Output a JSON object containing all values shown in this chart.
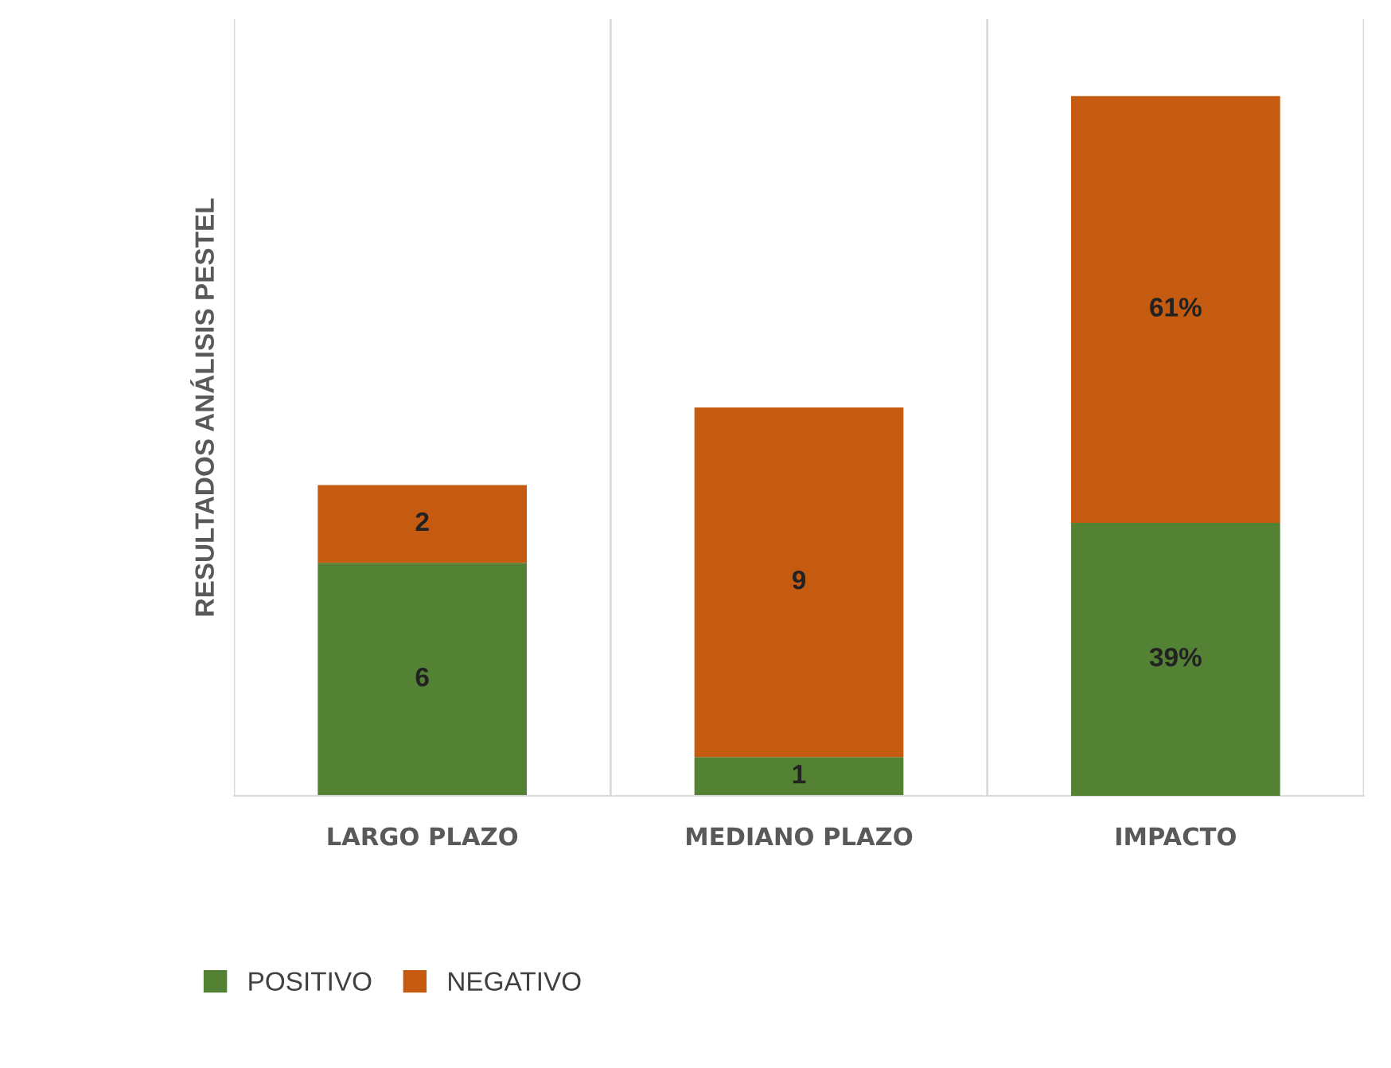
{
  "chart_data": {
    "type": "bar",
    "stacked": true,
    "ylabel": "RESULTADOS ANÁLISIS PESTEL",
    "categories": [
      "LARGO PLAZO",
      "MEDIANO PLAZO",
      "IMPACTO"
    ],
    "series": [
      {
        "name": "POSITIVO",
        "color": "#548235",
        "values": [
          6,
          1,
          null
        ],
        "value_labels": [
          "6",
          "1",
          null
        ]
      },
      {
        "name": "NEGATIVO",
        "color": "#c55a11",
        "values": [
          2,
          9,
          null
        ],
        "value_labels": [
          "2",
          "9",
          null
        ]
      },
      {
        "color": "#548235",
        "values": [
          null,
          null,
          39
        ],
        "value_labels": [
          null,
          null,
          "39%"
        ],
        "axis": "y2"
      },
      {
        "color": "#c55a11",
        "values": [
          null,
          null,
          61
        ],
        "value_labels": [
          null,
          null,
          "61%"
        ],
        "axis": "y2"
      }
    ],
    "ylim": [
      0,
      20
    ],
    "y2lim": [
      0,
      111
    ],
    "grid": "x",
    "legend": "bottom left",
    "tick_labels": "x"
  }
}
